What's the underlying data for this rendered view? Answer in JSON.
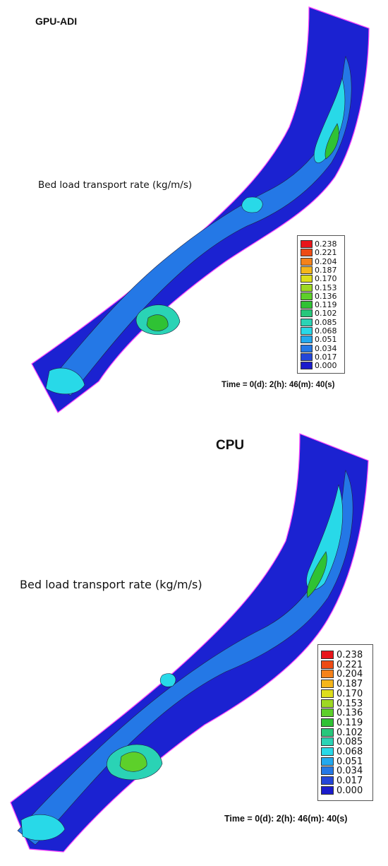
{
  "panels": [
    {
      "title": "GPU-ADI",
      "variable_label": "Bed load transport rate (kg/m/s)",
      "time_label": "Time = 0(d): 2(h): 46(m): 40(s)"
    },
    {
      "title": "CPU",
      "variable_label": "Bed load transport rate (kg/m/s)",
      "time_label": "Time = 0(d): 2(h): 46(m): 40(s)"
    }
  ],
  "legend": {
    "levels": [
      "0.238",
      "0.221",
      "0.204",
      "0.187",
      "0.170",
      "0.153",
      "0.136",
      "0.119",
      "0.102",
      "0.085",
      "0.068",
      "0.051",
      "0.034",
      "0.017",
      "0.000"
    ],
    "colors": [
      "#e8151a",
      "#ee4b14",
      "#f5821a",
      "#f5b61b",
      "#dede1c",
      "#9ed823",
      "#5dd02a",
      "#2fc234",
      "#27c77b",
      "#2ad3b5",
      "#28d9e8",
      "#22a9ee",
      "#2478e6",
      "#2446d8",
      "#1b1ccc"
    ]
  },
  "colors": {
    "background": "#1b22d1",
    "outline": "#ff40ff",
    "contour": "#202040"
  }
}
